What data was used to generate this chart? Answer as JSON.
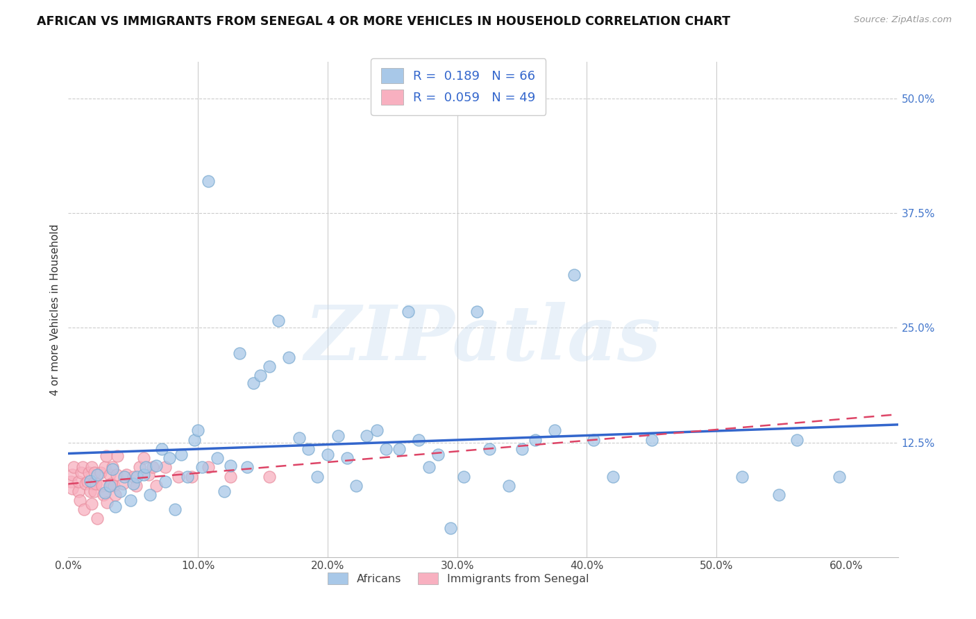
{
  "title": "AFRICAN VS IMMIGRANTS FROM SENEGAL 4 OR MORE VEHICLES IN HOUSEHOLD CORRELATION CHART",
  "source": "Source: ZipAtlas.com",
  "ylabel": "4 or more Vehicles in Household",
  "ylim": [
    0.0,
    0.54
  ],
  "xlim": [
    0.0,
    0.64
  ],
  "africans_R": 0.189,
  "africans_N": 66,
  "senegal_R": 0.059,
  "senegal_N": 49,
  "africans_color": "#a8c8e8",
  "africans_edge_color": "#7aaad0",
  "africans_line_color": "#3366cc",
  "senegal_color": "#f8b0c0",
  "senegal_edge_color": "#e890a0",
  "senegal_line_color": "#dd4466",
  "legend_label_1": "Africans",
  "legend_label_2": "Immigrants from Senegal",
  "watermark": "ZIPatlas",
  "africans_x": [
    0.017,
    0.022,
    0.028,
    0.032,
    0.034,
    0.036,
    0.04,
    0.043,
    0.048,
    0.05,
    0.053,
    0.058,
    0.06,
    0.063,
    0.068,
    0.072,
    0.075,
    0.078,
    0.082,
    0.087,
    0.092,
    0.097,
    0.1,
    0.103,
    0.108,
    0.115,
    0.12,
    0.125,
    0.132,
    0.138,
    0.143,
    0.148,
    0.155,
    0.162,
    0.17,
    0.178,
    0.185,
    0.192,
    0.2,
    0.208,
    0.215,
    0.222,
    0.23,
    0.238,
    0.245,
    0.255,
    0.262,
    0.27,
    0.278,
    0.285,
    0.295,
    0.305,
    0.315,
    0.325,
    0.34,
    0.35,
    0.36,
    0.375,
    0.39,
    0.405,
    0.42,
    0.45,
    0.52,
    0.548,
    0.562,
    0.595
  ],
  "africans_y": [
    0.083,
    0.09,
    0.07,
    0.078,
    0.096,
    0.055,
    0.072,
    0.088,
    0.062,
    0.08,
    0.088,
    0.09,
    0.098,
    0.068,
    0.1,
    0.118,
    0.082,
    0.108,
    0.052,
    0.112,
    0.088,
    0.128,
    0.138,
    0.098,
    0.41,
    0.108,
    0.072,
    0.1,
    0.222,
    0.098,
    0.19,
    0.198,
    0.208,
    0.258,
    0.218,
    0.13,
    0.118,
    0.088,
    0.112,
    0.132,
    0.108,
    0.078,
    0.132,
    0.138,
    0.118,
    0.118,
    0.268,
    0.128,
    0.098,
    0.112,
    0.032,
    0.088,
    0.268,
    0.118,
    0.078,
    0.118,
    0.128,
    0.138,
    0.308,
    0.128,
    0.088,
    0.128,
    0.088,
    0.068,
    0.128,
    0.088
  ],
  "senegal_x": [
    0.002,
    0.003,
    0.003,
    0.004,
    0.008,
    0.008,
    0.009,
    0.01,
    0.011,
    0.012,
    0.013,
    0.015,
    0.016,
    0.017,
    0.018,
    0.018,
    0.019,
    0.02,
    0.02,
    0.021,
    0.022,
    0.025,
    0.026,
    0.027,
    0.028,
    0.029,
    0.03,
    0.032,
    0.033,
    0.034,
    0.035,
    0.036,
    0.037,
    0.038,
    0.042,
    0.045,
    0.05,
    0.052,
    0.055,
    0.058,
    0.062,
    0.065,
    0.068,
    0.075,
    0.085,
    0.095,
    0.108,
    0.125,
    0.155
  ],
  "senegal_y": [
    0.082,
    0.075,
    0.09,
    0.098,
    0.072,
    0.082,
    0.062,
    0.092,
    0.098,
    0.052,
    0.08,
    0.082,
    0.092,
    0.072,
    0.058,
    0.098,
    0.08,
    0.072,
    0.092,
    0.08,
    0.042,
    0.092,
    0.078,
    0.068,
    0.098,
    0.11,
    0.06,
    0.09,
    0.08,
    0.098,
    0.078,
    0.068,
    0.09,
    0.11,
    0.08,
    0.09,
    0.088,
    0.078,
    0.098,
    0.108,
    0.09,
    0.098,
    0.078,
    0.098,
    0.088,
    0.088,
    0.098,
    0.088,
    0.088
  ]
}
